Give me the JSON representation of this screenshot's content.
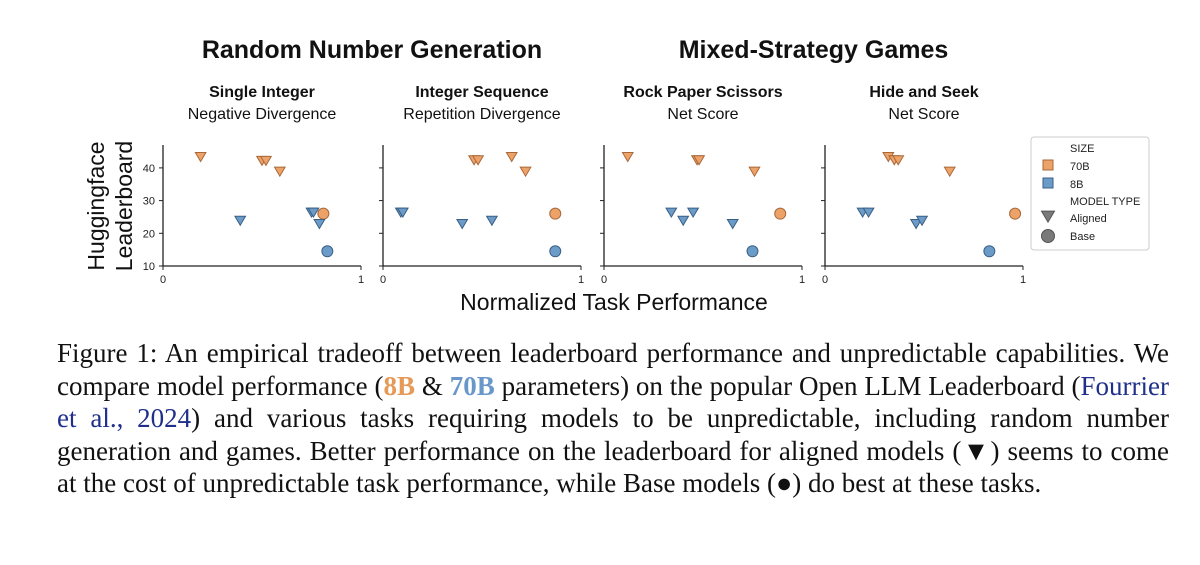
{
  "chart_data": {
    "type": "scatter",
    "groups": [
      {
        "title": "Random Number Generation",
        "panels": [
          0,
          1
        ]
      },
      {
        "title": "Mixed-Strategy Games",
        "panels": [
          2,
          3
        ]
      }
    ],
    "ylabel": "Huggingface\nLeaderboard",
    "xlabel": "Normalized Task Performance",
    "xlim": [
      0,
      1
    ],
    "ylim": [
      10,
      47
    ],
    "xticks": [
      "0",
      "1"
    ],
    "yticks": [
      10,
      20,
      30,
      40
    ],
    "colors": {
      "70B": "#eda268",
      "8B": "#6b9bc8"
    },
    "edge_colors": {
      "70B": "#a8683a",
      "8B": "#3b5f82"
    },
    "panels": [
      {
        "title": "Single Integer",
        "subtitle": "Negative Divergence",
        "show_yticks": true,
        "points": [
          {
            "size": "70B",
            "type": "Aligned",
            "x": 0.19,
            "y": 43.5
          },
          {
            "size": "70B",
            "type": "Aligned",
            "x": 0.5,
            "y": 42.3
          },
          {
            "size": "70B",
            "type": "Aligned",
            "x": 0.52,
            "y": 42.3
          },
          {
            "size": "70B",
            "type": "Aligned",
            "x": 0.59,
            "y": 39.0
          },
          {
            "size": "70B",
            "type": "Base",
            "x": 0.81,
            "y": 26.0
          },
          {
            "size": "8B",
            "type": "Aligned",
            "x": 0.39,
            "y": 24.0
          },
          {
            "size": "8B",
            "type": "Aligned",
            "x": 0.75,
            "y": 26.5
          },
          {
            "size": "8B",
            "type": "Aligned",
            "x": 0.76,
            "y": 26.5
          },
          {
            "size": "8B",
            "type": "Aligned",
            "x": 0.79,
            "y": 23.0
          },
          {
            "size": "8B",
            "type": "Base",
            "x": 0.83,
            "y": 14.5
          }
        ]
      },
      {
        "title": "Integer Sequence",
        "subtitle": "Repetition Divergence",
        "show_yticks": false,
        "points": [
          {
            "size": "70B",
            "type": "Aligned",
            "x": 0.46,
            "y": 42.5
          },
          {
            "size": "70B",
            "type": "Aligned",
            "x": 0.48,
            "y": 42.5
          },
          {
            "size": "70B",
            "type": "Aligned",
            "x": 0.65,
            "y": 43.5
          },
          {
            "size": "70B",
            "type": "Aligned",
            "x": 0.72,
            "y": 39.0
          },
          {
            "size": "70B",
            "type": "Base",
            "x": 0.87,
            "y": 26.0
          },
          {
            "size": "8B",
            "type": "Aligned",
            "x": 0.09,
            "y": 26.5
          },
          {
            "size": "8B",
            "type": "Aligned",
            "x": 0.1,
            "y": 26.5
          },
          {
            "size": "8B",
            "type": "Aligned",
            "x": 0.4,
            "y": 23.0
          },
          {
            "size": "8B",
            "type": "Aligned",
            "x": 0.55,
            "y": 24.0
          },
          {
            "size": "8B",
            "type": "Base",
            "x": 0.87,
            "y": 14.5
          }
        ]
      },
      {
        "title": "Rock Paper Scissors",
        "subtitle": "Net Score",
        "show_yticks": false,
        "points": [
          {
            "size": "70B",
            "type": "Aligned",
            "x": 0.12,
            "y": 43.5
          },
          {
            "size": "70B",
            "type": "Aligned",
            "x": 0.47,
            "y": 42.5
          },
          {
            "size": "70B",
            "type": "Aligned",
            "x": 0.48,
            "y": 42.5
          },
          {
            "size": "70B",
            "type": "Aligned",
            "x": 0.76,
            "y": 39.0
          },
          {
            "size": "70B",
            "type": "Base",
            "x": 0.89,
            "y": 26.0
          },
          {
            "size": "8B",
            "type": "Aligned",
            "x": 0.34,
            "y": 26.5
          },
          {
            "size": "8B",
            "type": "Aligned",
            "x": 0.4,
            "y": 24.0
          },
          {
            "size": "8B",
            "type": "Aligned",
            "x": 0.45,
            "y": 26.5
          },
          {
            "size": "8B",
            "type": "Aligned",
            "x": 0.65,
            "y": 23.0
          },
          {
            "size": "8B",
            "type": "Base",
            "x": 0.75,
            "y": 14.5
          }
        ]
      },
      {
        "title": "Hide and Seek",
        "subtitle": "Net Score",
        "show_yticks": false,
        "points": [
          {
            "size": "70B",
            "type": "Aligned",
            "x": 0.32,
            "y": 43.5
          },
          {
            "size": "70B",
            "type": "Aligned",
            "x": 0.35,
            "y": 42.5
          },
          {
            "size": "70B",
            "type": "Aligned",
            "x": 0.37,
            "y": 42.5
          },
          {
            "size": "70B",
            "type": "Aligned",
            "x": 0.63,
            "y": 39.0
          },
          {
            "size": "70B",
            "type": "Base",
            "x": 0.96,
            "y": 26.0
          },
          {
            "size": "8B",
            "type": "Aligned",
            "x": 0.19,
            "y": 26.5
          },
          {
            "size": "8B",
            "type": "Aligned",
            "x": 0.22,
            "y": 26.5
          },
          {
            "size": "8B",
            "type": "Aligned",
            "x": 0.46,
            "y": 23.0
          },
          {
            "size": "8B",
            "type": "Aligned",
            "x": 0.49,
            "y": 24.0
          },
          {
            "size": "8B",
            "type": "Base",
            "x": 0.83,
            "y": 14.5
          }
        ]
      }
    ],
    "legend": {
      "placement": "right",
      "size_title": "SIZE",
      "size_entries": [
        "70B",
        "8B"
      ],
      "type_title": "MODEL TYPE",
      "type_entries": [
        "Aligned",
        "Base"
      ]
    }
  },
  "caption": {
    "figure_label": "Figure 1:",
    "part1": "An empirical tradeoff between leaderboard performance and unpredictable capabilities. We compare model performance (",
    "label_8b": "8B",
    "amp": "&",
    "label_70b": "70B",
    "part2": "parameters) on the popular Open LLM Leaderboard (",
    "citation": "Fourrier et al., 2024",
    "part3": ") and various tasks requiring models to be unpredictable, including random number generation and games. Better performance on the leaderboard for aligned models (▼) seems to come at the cost of unpredictable task performance, while Base models (●) do best at these tasks."
  }
}
